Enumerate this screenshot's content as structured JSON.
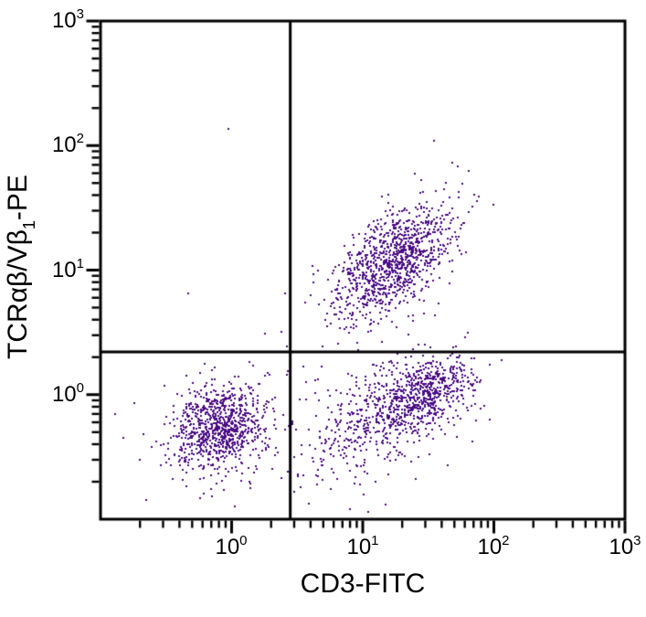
{
  "chart_data": {
    "type": "scatter",
    "subtype": "flow-cytometry-dot-plot",
    "title": "",
    "xlabel": "CD3-FITC",
    "ylabel": "TCRαβ/Vβ₁-PE",
    "ylabel_parts": {
      "pre": "TCRαβ/Vβ",
      "sub": "1",
      "post": "-PE"
    },
    "x_scale": "log",
    "y_scale": "log",
    "xlim": [
      0.1,
      1000
    ],
    "ylim": [
      0.1,
      1000
    ],
    "grid": false,
    "legend": false,
    "x_ticks": [
      {
        "base": "10",
        "exp": "0",
        "value": 1
      },
      {
        "base": "10",
        "exp": "1",
        "value": 10
      },
      {
        "base": "10",
        "exp": "2",
        "value": 100
      },
      {
        "base": "10",
        "exp": "3",
        "value": 1000
      }
    ],
    "y_ticks": [
      {
        "base": "10",
        "exp": "3",
        "value": 1000
      },
      {
        "base": "10",
        "exp": "2",
        "value": 100
      },
      {
        "base": "10",
        "exp": "1",
        "value": 10
      },
      {
        "base": "10",
        "exp": "0",
        "value": 1
      }
    ],
    "minor_tick_multiples": [
      2,
      3,
      4,
      5,
      6,
      7,
      8,
      9
    ],
    "quadrant_gates": {
      "x": 2.8,
      "y": 2.2
    },
    "dot_color": "#4a0c85",
    "axis_color": "#000000",
    "background_color": "#ffffff",
    "clusters": [
      {
        "name": "CD3-neg TCR-neg lymphocytes (lower-left)",
        "count": 850,
        "log_cx": -0.09,
        "log_cy": -0.26,
        "log_sx": 0.17,
        "log_sy": 0.17,
        "rho": 0.1,
        "seed": 101
      },
      {
        "name": "CD3-pos TCRab-pos T cells (upper-right)",
        "count": 1050,
        "log_cx": 1.23,
        "log_cy": 1.07,
        "log_sx": 0.23,
        "log_sy": 0.22,
        "rho": 0.55,
        "seed": 202
      },
      {
        "name": "CD3-pos TCRab-neg main (lower-right)",
        "count": 520,
        "log_cx": 1.2,
        "log_cy": -0.15,
        "log_sx": 0.28,
        "log_sy": 0.22,
        "rho": 0.45,
        "seed": 303
      },
      {
        "name": "CD3-pos TCRab-neg dense core (lower-right)",
        "count": 430,
        "log_cx": 1.5,
        "log_cy": 0.02,
        "log_sx": 0.17,
        "log_sy": 0.14,
        "rho": 0.35,
        "seed": 404
      },
      {
        "name": "sparse background spray",
        "count": 90,
        "log_cx": 0.55,
        "log_cy": -0.3,
        "log_sx": 0.5,
        "log_sy": 0.42,
        "rho": 0.0,
        "seed": 505
      }
    ],
    "outlier_points": [
      [
        0.95,
        135
      ],
      [
        0.47,
        6.5
      ],
      [
        35,
        110
      ],
      [
        64,
        63
      ],
      [
        2.4,
        3.2
      ],
      [
        0.13,
        0.7
      ],
      [
        0.15,
        0.45
      ],
      [
        0.18,
        0.85
      ],
      [
        0.2,
        0.3
      ],
      [
        8,
        0.12
      ],
      [
        15,
        0.13
      ],
      [
        11,
        0.115
      ]
    ],
    "dot_size_px": 2
  }
}
